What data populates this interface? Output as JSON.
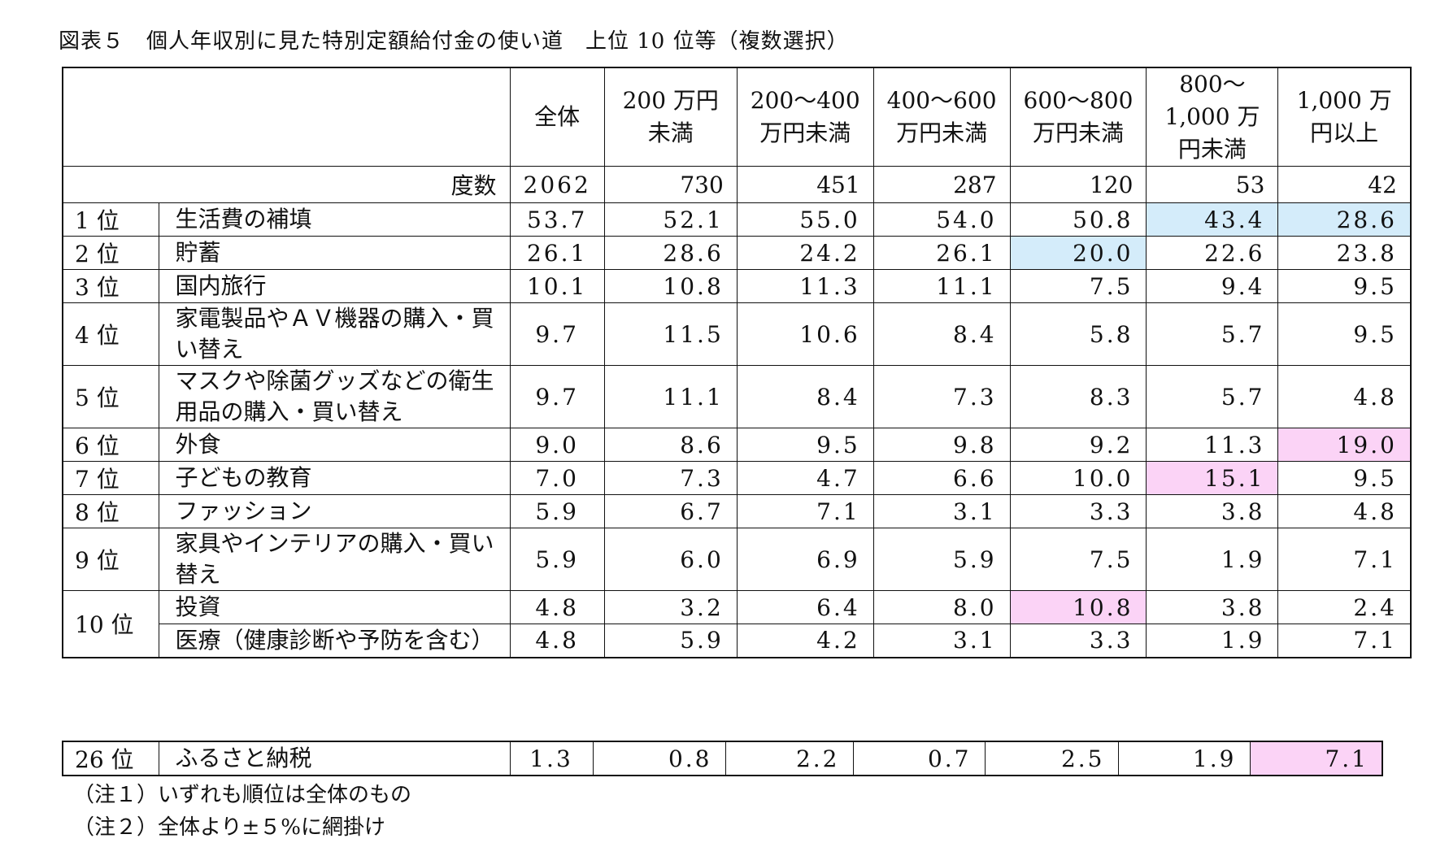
{
  "title": "図表５　個人年収別に見た特別定額給付金の使い道　上位 10 位等（複数選択）",
  "header": {
    "total": "全体",
    "cols": [
      [
        "200 万円",
        "未満"
      ],
      [
        "200～400",
        "万円未満"
      ],
      [
        "400～600",
        "万円未満"
      ],
      [
        "600～800",
        "万円未満"
      ],
      [
        "800～",
        "1,000 万",
        "円未満"
      ],
      [
        "1,000 万",
        "円以上"
      ]
    ]
  },
  "count_row": {
    "label": "度数",
    "values": [
      "2062",
      "730",
      "451",
      "287",
      "120",
      "53",
      "42"
    ]
  },
  "rows": [
    {
      "rank": "1 位",
      "item": "生活費の補填",
      "values": [
        "53.7",
        "52.1",
        "55.0",
        "54.0",
        "50.8",
        "43.4",
        "28.6"
      ],
      "hl": [
        "",
        "",
        "",
        "",
        "",
        "blue",
        "blue"
      ]
    },
    {
      "rank": "2 位",
      "item": "貯蓄",
      "values": [
        "26.1",
        "28.6",
        "24.2",
        "26.1",
        "20.0",
        "22.6",
        "23.8"
      ],
      "hl": [
        "",
        "",
        "",
        "",
        "blue",
        "",
        ""
      ]
    },
    {
      "rank": "3 位",
      "item": "国内旅行",
      "values": [
        "10.1",
        "10.8",
        "11.3",
        "11.1",
        "7.5",
        "9.4",
        "9.5"
      ],
      "hl": [
        "",
        "",
        "",
        "",
        "",
        "",
        ""
      ]
    },
    {
      "rank": "4 位",
      "item": "家電製品やＡＶ機器の購入・買い替え",
      "values": [
        "9.7",
        "11.5",
        "10.6",
        "8.4",
        "5.8",
        "5.7",
        "9.5"
      ],
      "hl": [
        "",
        "",
        "",
        "",
        "",
        "",
        ""
      ]
    },
    {
      "rank": "5 位",
      "item": "マスクや除菌グッズなどの衛生用品の購入・買い替え",
      "values": [
        "9.7",
        "11.1",
        "8.4",
        "7.3",
        "8.3",
        "5.7",
        "4.8"
      ],
      "hl": [
        "",
        "",
        "",
        "",
        "",
        "",
        ""
      ]
    },
    {
      "rank": "6 位",
      "item": "外食",
      "values": [
        "9.0",
        "8.6",
        "9.5",
        "9.8",
        "9.2",
        "11.3",
        "19.0"
      ],
      "hl": [
        "",
        "",
        "",
        "",
        "",
        "",
        "pink"
      ]
    },
    {
      "rank": "7 位",
      "item": "子どもの教育",
      "values": [
        "7.0",
        "7.3",
        "4.7",
        "6.6",
        "10.0",
        "15.1",
        "9.5"
      ],
      "hl": [
        "",
        "",
        "",
        "",
        "",
        "pink",
        ""
      ]
    },
    {
      "rank": "8 位",
      "item": "ファッション",
      "values": [
        "5.9",
        "6.7",
        "7.1",
        "3.1",
        "3.3",
        "3.8",
        "4.8"
      ],
      "hl": [
        "",
        "",
        "",
        "",
        "",
        "",
        ""
      ]
    },
    {
      "rank": "9 位",
      "item": "家具やインテリアの購入・買い替え",
      "values": [
        "5.9",
        "6.0",
        "6.9",
        "5.9",
        "7.5",
        "1.9",
        "7.1"
      ],
      "hl": [
        "",
        "",
        "",
        "",
        "",
        "",
        ""
      ]
    },
    {
      "rank": "10 位",
      "item": "投資",
      "values": [
        "4.8",
        "3.2",
        "6.4",
        "8.0",
        "10.8",
        "3.8",
        "2.4"
      ],
      "hl": [
        "",
        "",
        "",
        "",
        "pink",
        "",
        ""
      ]
    },
    {
      "rank": "",
      "item": "医療（健康診断や予防を含む）",
      "values": [
        "4.8",
        "5.9",
        "4.2",
        "3.1",
        "3.3",
        "1.9",
        "7.1"
      ],
      "hl": [
        "",
        "",
        "",
        "",
        "",
        "",
        ""
      ]
    }
  ],
  "extra_row": {
    "rank": "26 位",
    "item": "ふるさと納税",
    "values": [
      "1.3",
      "0.8",
      "2.2",
      "0.7",
      "2.5",
      "1.9",
      "7.1"
    ],
    "hl": [
      "",
      "",
      "",
      "",
      "",
      "",
      "pink"
    ]
  },
  "notes": [
    "（注１）いずれも順位は全体のもの",
    "（注２）全体より±５%に網掛け"
  ]
}
